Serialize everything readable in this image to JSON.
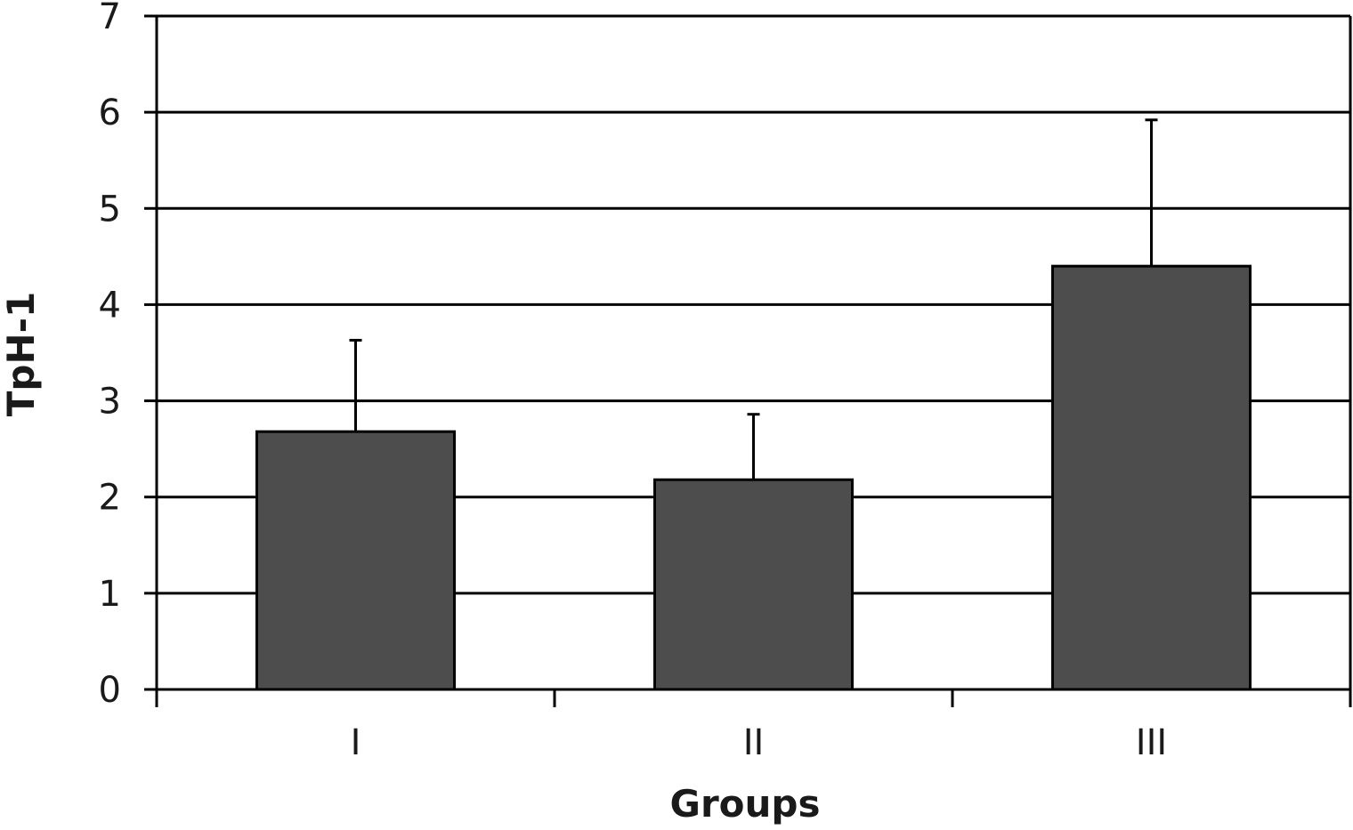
{
  "chart_data": {
    "type": "bar",
    "title": "",
    "xlabel": "Groups",
    "ylabel": "TpH-1",
    "categories": [
      "I",
      "II",
      "III"
    ],
    "values": [
      2.68,
      2.18,
      4.4
    ],
    "error_upper": [
      3.63,
      2.86,
      5.92
    ],
    "ylim": [
      0,
      7
    ],
    "yticks": [
      "0",
      "1",
      "2",
      "3",
      "4",
      "5",
      "6",
      "7"
    ],
    "grid": true,
    "legend": "none",
    "colors": {
      "bar": "#4d4d4d",
      "axis": "#000000",
      "grid": "#000000"
    }
  }
}
